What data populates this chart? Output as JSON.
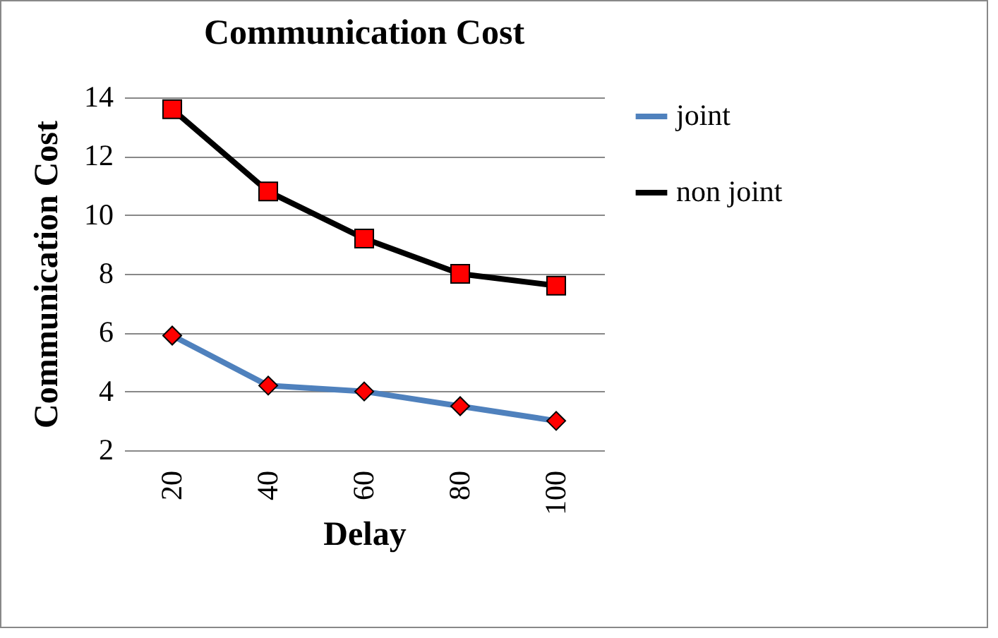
{
  "chart_data": {
    "type": "line",
    "title": "Communication Cost",
    "xlabel": "Delay",
    "ylabel": "Communication Cost",
    "categories": [
      "20",
      "40",
      "60",
      "80",
      "100"
    ],
    "series": [
      {
        "name": "joint",
        "color": "#4f81bd",
        "marker": "diamond",
        "colors": [
          "#ff0000",
          "#ff0000",
          "#ff0000",
          "#ff0000",
          "#ff0000"
        ],
        "values": [
          5.9,
          4.2,
          4.0,
          3.5,
          3.0
        ]
      },
      {
        "name": "non joint",
        "color": "#000000",
        "marker": "square",
        "colors": [
          "#ff0000",
          "#ff0000",
          "#ff0000",
          "#ff0000",
          "#ff0000"
        ],
        "values": [
          13.6,
          10.8,
          9.2,
          8.0,
          7.6
        ]
      }
    ],
    "ylim": [
      2,
      14
    ],
    "yticks": [
      2,
      4,
      6,
      8,
      10,
      12,
      14
    ],
    "grid": "y",
    "legend": "right"
  }
}
